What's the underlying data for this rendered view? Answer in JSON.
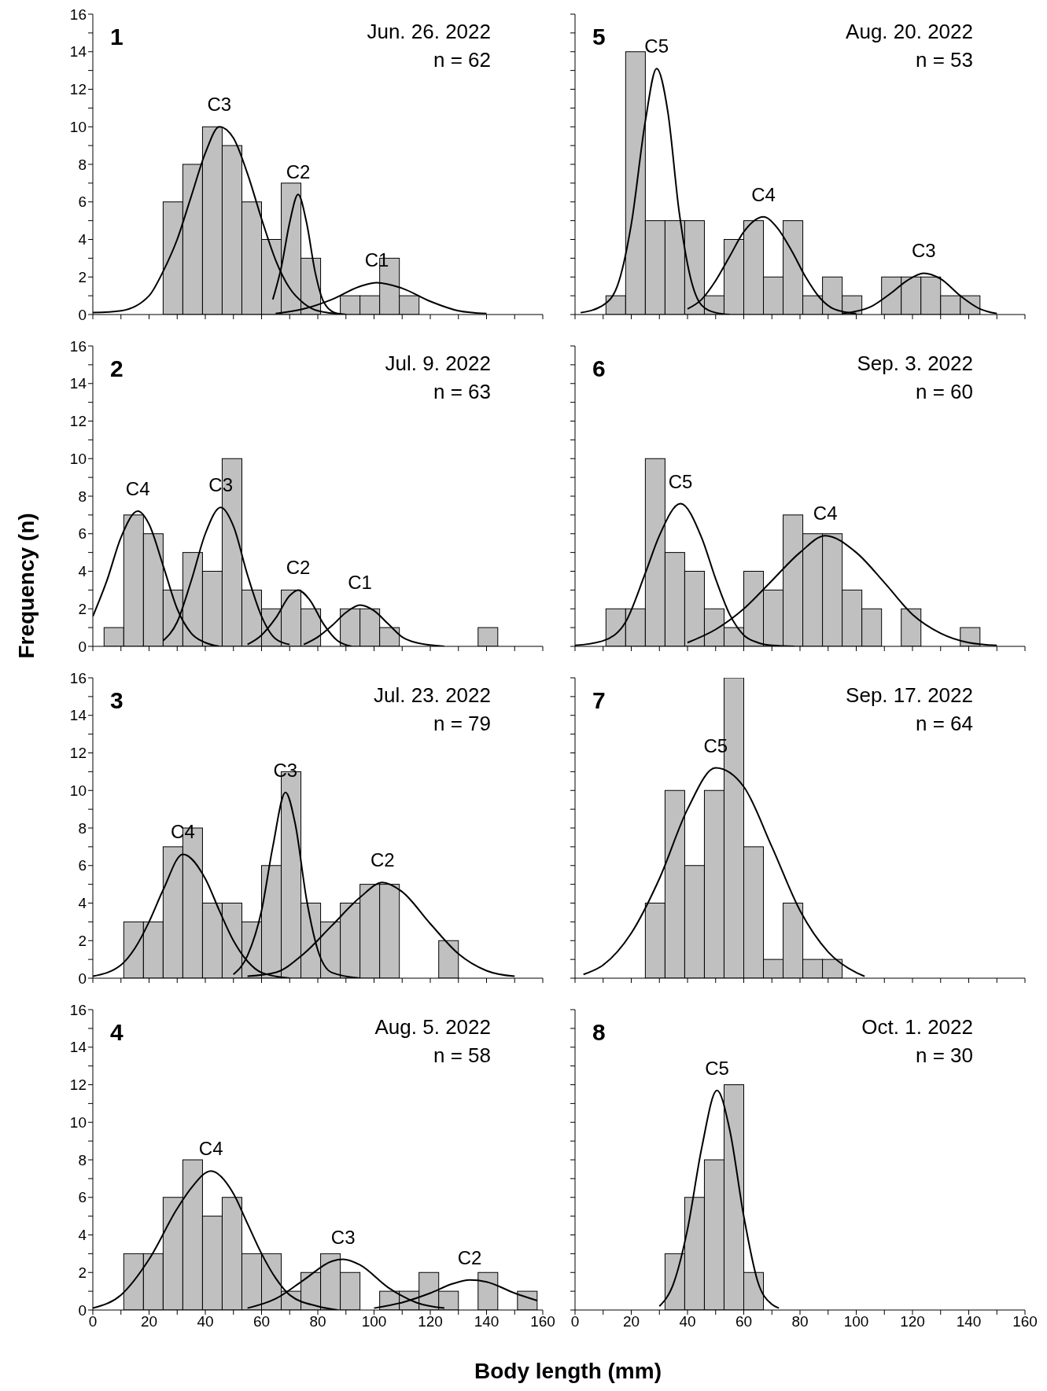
{
  "chart_data": [
    {
      "type": "histogram",
      "bins": [
        25,
        32,
        39,
        46,
        53,
        60,
        67,
        74,
        81,
        88,
        95,
        102,
        109,
        116
      ],
      "values": [
        6,
        8,
        10,
        9,
        6,
        4,
        7,
        3,
        0,
        1,
        1,
        3,
        1
      ],
      "color": "#c0c0c0",
      "xlim": [
        0,
        160
      ],
      "ylim": [
        0,
        16
      ],
      "xticks": [
        0,
        {
          "value": 10,
          "label": null
        },
        20,
        {
          "value": 30,
          "label": null
        },
        40,
        {
          "value": 50,
          "label": null
        },
        60,
        {
          "value": 70,
          "label": null
        },
        80,
        {
          "value": 90,
          "label": null
        },
        100,
        {
          "value": 110,
          "label": null
        },
        120,
        {
          "value": 130,
          "label": null
        },
        140,
        {
          "value": 150,
          "label": null
        },
        160
      ],
      "yticks": [
        0,
        {
          "value": 1,
          "label": null
        },
        2,
        {
          "value": 3,
          "label": null
        },
        4,
        {
          "value": 5,
          "label": null
        },
        6,
        {
          "value": 7,
          "label": null
        },
        8,
        {
          "value": 9,
          "label": null
        },
        10,
        {
          "value": 11,
          "label": null
        },
        12,
        {
          "value": 13,
          "label": null
        },
        14,
        {
          "value": 15,
          "label": null
        },
        16
      ],
      "tick_labels": "y",
      "annotations": [
        "1",
        "Jun. 26. 2022",
        "n = 62"
      ],
      "series": [
        {
          "type": "line",
          "name": "C3",
          "color": "#000000",
          "x": [
            0,
            10,
            20,
            25,
            30,
            35,
            40,
            45,
            50,
            55,
            60,
            65,
            70,
            75,
            80,
            90
          ],
          "values": [
            0.1,
            0.2,
            1.0,
            2.3,
            4.0,
            6.3,
            8.6,
            10,
            9.4,
            7.5,
            5.1,
            2.9,
            1.4,
            0.6,
            0.2,
            0
          ]
        },
        {
          "type": "line",
          "name": "C2",
          "color": "#000000",
          "x": [
            64,
            67,
            70,
            73,
            76,
            79,
            82,
            86,
            90
          ],
          "values": [
            0.8,
            2.5,
            4.9,
            6.4,
            4.9,
            2.3,
            0.7,
            0.1,
            0
          ]
        },
        {
          "type": "line",
          "name": "C1",
          "color": "#000000",
          "x": [
            65,
            75,
            85,
            95,
            101,
            110,
            120,
            130,
            140
          ],
          "values": [
            0.05,
            0.3,
            0.8,
            1.5,
            1.7,
            1.4,
            0.7,
            0.2,
            0.05
          ]
        }
      ]
    },
    {
      "type": "histogram",
      "ylabel": "Frequency (n)",
      "bins": [
        4,
        11,
        18,
        25,
        32,
        39,
        46,
        53,
        60,
        67,
        74,
        81,
        88,
        95,
        102,
        109,
        116,
        123,
        130,
        137,
        144
      ],
      "values": [
        1,
        7,
        6,
        3,
        5,
        4,
        10,
        3,
        2,
        3,
        2,
        0,
        2,
        2,
        1,
        0,
        0,
        0,
        0,
        1
      ],
      "color": "#c0c0c0",
      "xlim": [
        0,
        160
      ],
      "ylim": [
        0,
        16
      ],
      "xticks": [
        0,
        {
          "value": 10,
          "label": null
        },
        20,
        {
          "value": 30,
          "label": null
        },
        40,
        {
          "value": 50,
          "label": null
        },
        60,
        {
          "value": 70,
          "label": null
        },
        80,
        {
          "value": 90,
          "label": null
        },
        100,
        {
          "value": 110,
          "label": null
        },
        120,
        {
          "value": 130,
          "label": null
        },
        140,
        {
          "value": 150,
          "label": null
        },
        160
      ],
      "yticks": [
        0,
        {
          "value": 1,
          "label": null
        },
        2,
        {
          "value": 3,
          "label": null
        },
        4,
        {
          "value": 5,
          "label": null
        },
        6,
        {
          "value": 7,
          "label": null
        },
        8,
        {
          "value": 9,
          "label": null
        },
        10,
        {
          "value": 11,
          "label": null
        },
        12,
        {
          "value": 13,
          "label": null
        },
        14,
        {
          "value": 15,
          "label": null
        },
        16
      ],
      "tick_labels": "y",
      "annotations": [
        "2",
        "Jul. 9. 2022",
        "n = 63"
      ],
      "series": [
        {
          "type": "line",
          "name": "C4",
          "color": "#000000",
          "x": [
            0,
            5,
            10,
            16,
            20,
            25,
            30,
            35,
            40,
            45
          ],
          "values": [
            1.6,
            3.5,
            5.8,
            7.2,
            6.5,
            4.3,
            2.0,
            0.7,
            0.2,
            0
          ]
        },
        {
          "type": "line",
          "name": "C3",
          "color": "#000000",
          "x": [
            25,
            30,
            35,
            40,
            45.5,
            50,
            55,
            60,
            65,
            70
          ],
          "values": [
            0.3,
            1.3,
            3.5,
            6.0,
            7.4,
            6.4,
            3.8,
            1.6,
            0.4,
            0.1
          ]
        },
        {
          "type": "line",
          "name": "C2",
          "color": "#000000",
          "x": [
            55,
            60,
            65,
            70,
            73,
            77,
            82,
            87,
            92
          ],
          "values": [
            0.1,
            0.6,
            1.5,
            2.7,
            3.0,
            2.5,
            1.2,
            0.3,
            0
          ]
        },
        {
          "type": "line",
          "name": "C1",
          "color": "#000000",
          "x": [
            75,
            80,
            85,
            90,
            95,
            100,
            105,
            110,
            115,
            125
          ],
          "values": [
            0.1,
            0.5,
            1.1,
            1.8,
            2.2,
            1.9,
            1.2,
            0.5,
            0.2,
            0
          ]
        }
      ]
    },
    {
      "type": "histogram",
      "bins": [
        11,
        18,
        25,
        32,
        39,
        46,
        53,
        60,
        67,
        74,
        81,
        88,
        95,
        102,
        109,
        116,
        123,
        130
      ],
      "values": [
        3,
        3,
        7,
        8,
        4,
        4,
        3,
        6,
        11,
        4,
        3,
        4,
        5,
        5,
        0,
        0,
        2
      ],
      "color": "#c0c0c0",
      "xlim": [
        0,
        160
      ],
      "ylim": [
        0,
        16
      ],
      "xticks": [
        0,
        {
          "value": 10,
          "label": null
        },
        20,
        {
          "value": 30,
          "label": null
        },
        40,
        {
          "value": 50,
          "label": null
        },
        60,
        {
          "value": 70,
          "label": null
        },
        80,
        {
          "value": 90,
          "label": null
        },
        100,
        {
          "value": 110,
          "label": null
        },
        120,
        {
          "value": 130,
          "label": null
        },
        140,
        {
          "value": 150,
          "label": null
        },
        160
      ],
      "yticks": [
        0,
        {
          "value": 1,
          "label": null
        },
        2,
        {
          "value": 3,
          "label": null
        },
        4,
        {
          "value": 5,
          "label": null
        },
        6,
        {
          "value": 7,
          "label": null
        },
        8,
        {
          "value": 9,
          "label": null
        },
        10,
        {
          "value": 11,
          "label": null
        },
        12,
        {
          "value": 13,
          "label": null
        },
        14,
        {
          "value": 15,
          "label": null
        },
        16
      ],
      "tick_labels": "y",
      "annotations": [
        "3",
        "Jul. 23. 2022",
        "n = 79"
      ],
      "series": [
        {
          "type": "line",
          "name": "C4",
          "color": "#000000",
          "x": [
            0,
            10,
            15,
            20,
            25,
            32,
            40,
            45,
            50,
            55,
            60,
            70
          ],
          "values": [
            0.1,
            0.7,
            1.6,
            3.0,
            4.7,
            6.6,
            5.3,
            3.6,
            2.0,
            0.9,
            0.3,
            0
          ]
        },
        {
          "type": "line",
          "name": "C3",
          "color": "#000000",
          "x": [
            50,
            55,
            60,
            64,
            68.5,
            72,
            76,
            80,
            85,
            95
          ],
          "values": [
            0.2,
            1.2,
            3.6,
            7.0,
            9.9,
            8.2,
            4.2,
            1.5,
            0.3,
            0
          ]
        },
        {
          "type": "line",
          "name": "C2",
          "color": "#000000",
          "x": [
            55,
            65,
            75,
            85,
            95,
            103,
            110,
            120,
            130,
            140,
            150
          ],
          "values": [
            0.1,
            0.3,
            1.3,
            2.8,
            4.3,
            5.1,
            4.6,
            2.9,
            1.3,
            0.4,
            0.1
          ]
        }
      ]
    },
    {
      "type": "histogram",
      "xlabel": "Body length (mm)",
      "bins": [
        11,
        18,
        25,
        32,
        39,
        46,
        53,
        60,
        67,
        74,
        81,
        88,
        95,
        102,
        109,
        116,
        123,
        130,
        137,
        144,
        151,
        158
      ],
      "values": [
        3,
        3,
        6,
        8,
        5,
        6,
        3,
        3,
        1,
        2,
        3,
        2,
        0,
        1,
        1,
        2,
        1,
        0,
        2,
        0,
        1
      ],
      "color": "#c0c0c0",
      "xlim": [
        0,
        160
      ],
      "ylim": [
        0,
        16
      ],
      "xticks": [
        0,
        {
          "value": 10,
          "label": null
        },
        20,
        {
          "value": 30,
          "label": null
        },
        40,
        {
          "value": 50,
          "label": null
        },
        60,
        {
          "value": 70,
          "label": null
        },
        80,
        {
          "value": 90,
          "label": null
        },
        100,
        {
          "value": 110,
          "label": null
        },
        120,
        {
          "value": 130,
          "label": null
        },
        140,
        {
          "value": 150,
          "label": null
        },
        160
      ],
      "yticks": [
        0,
        {
          "value": 1,
          "label": null
        },
        2,
        {
          "value": 3,
          "label": null
        },
        4,
        {
          "value": 5,
          "label": null
        },
        6,
        {
          "value": 7,
          "label": null
        },
        8,
        {
          "value": 9,
          "label": null
        },
        10,
        {
          "value": 11,
          "label": null
        },
        12,
        {
          "value": 13,
          "label": null
        },
        14,
        {
          "value": 15,
          "label": null
        },
        16
      ],
      "annotations": [
        "4",
        "Aug. 5. 2022",
        "n = 58"
      ],
      "series": [
        {
          "type": "line",
          "name": "C4",
          "color": "#000000",
          "x": [
            0,
            10,
            20,
            30,
            35,
            42,
            50,
            55,
            60,
            65,
            70,
            80,
            87
          ],
          "values": [
            0.1,
            0.8,
            2.7,
            5.4,
            6.5,
            7.4,
            6.2,
            4.6,
            3.0,
            1.7,
            0.8,
            0.2,
            0
          ]
        },
        {
          "type": "line",
          "name": "C3",
          "color": "#000000",
          "x": [
            55,
            65,
            75,
            85,
            89,
            95,
            105,
            115,
            125
          ],
          "values": [
            0.1,
            0.6,
            1.6,
            2.6,
            2.7,
            2.4,
            1.2,
            0.4,
            0.1
          ]
        },
        {
          "type": "line",
          "name": "C2",
          "color": "#000000",
          "x": [
            100,
            110,
            120,
            128,
            134,
            140,
            150,
            158
          ],
          "values": [
            0.1,
            0.4,
            0.9,
            1.4,
            1.6,
            1.5,
            0.9,
            0.5
          ]
        }
      ]
    },
    {
      "type": "histogram",
      "bins": [
        11,
        18,
        25,
        32,
        39,
        46,
        53,
        60,
        67,
        74,
        81,
        88,
        95,
        102,
        109,
        116,
        123,
        130,
        137,
        144
      ],
      "values": [
        1,
        14,
        5,
        5,
        5,
        1,
        4,
        5,
        2,
        5,
        1,
        2,
        1,
        0,
        2,
        2,
        2,
        1,
        1
      ],
      "color": "#c0c0c0",
      "xlim": [
        0,
        160
      ],
      "ylim": [
        0,
        16
      ],
      "xticks": [
        0,
        {
          "value": 10,
          "label": null
        },
        20,
        {
          "value": 30,
          "label": null
        },
        40,
        {
          "value": 50,
          "label": null
        },
        60,
        {
          "value": 70,
          "label": null
        },
        80,
        {
          "value": 90,
          "label": null
        },
        100,
        {
          "value": 110,
          "label": null
        },
        120,
        {
          "value": 130,
          "label": null
        },
        140,
        {
          "value": 150,
          "label": null
        },
        160
      ],
      "yticks": [
        0,
        {
          "value": 1,
          "label": null
        },
        2,
        {
          "value": 3,
          "label": null
        },
        4,
        {
          "value": 5,
          "label": null
        },
        6,
        {
          "value": 7,
          "label": null
        },
        8,
        {
          "value": 9,
          "label": null
        },
        10,
        {
          "value": 11,
          "label": null
        },
        12,
        {
          "value": 13,
          "label": null
        },
        14,
        {
          "value": 15,
          "label": null
        },
        16
      ],
      "tick_labels": false,
      "annotations": [
        "5",
        "Aug. 20. 2022",
        "n = 53"
      ],
      "series": [
        {
          "type": "line",
          "name": "C5",
          "color": "#000000",
          "x": [
            2,
            10,
            15,
            20,
            25,
            29,
            33,
            37,
            41,
            45,
            50,
            55
          ],
          "values": [
            0.1,
            0.5,
            1.5,
            4.8,
            10.3,
            13.1,
            10.8,
            5.5,
            2.0,
            0.5,
            0.1,
            0
          ]
        },
        {
          "type": "line",
          "name": "C4",
          "color": "#000000",
          "x": [
            40,
            45,
            50,
            55,
            60,
            67,
            72,
            77,
            82,
            87,
            92,
            100
          ],
          "values": [
            0.3,
            0.8,
            1.8,
            3.1,
            4.4,
            5.2,
            4.6,
            3.4,
            2.0,
            0.9,
            0.3,
            0.05
          ]
        },
        {
          "type": "line",
          "name": "C3",
          "color": "#000000",
          "x": [
            95,
            105,
            112,
            118,
            124,
            130,
            137,
            144,
            150
          ],
          "values": [
            0.05,
            0.4,
            1.1,
            1.8,
            2.2,
            1.9,
            1.0,
            0.3,
            0.05
          ]
        }
      ]
    },
    {
      "type": "histogram",
      "bins": [
        11,
        18,
        25,
        32,
        39,
        46,
        53,
        60,
        67,
        74,
        81,
        88,
        95,
        102,
        109,
        116,
        123,
        130,
        137,
        144
      ],
      "values": [
        2,
        2,
        10,
        5,
        4,
        2,
        1,
        4,
        3,
        7,
        6,
        6,
        3,
        2,
        0,
        2,
        0,
        0,
        1
      ],
      "color": "#c0c0c0",
      "xlim": [
        0,
        160
      ],
      "ylim": [
        0,
        16
      ],
      "xticks": [
        0,
        {
          "value": 10,
          "label": null
        },
        20,
        {
          "value": 30,
          "label": null
        },
        40,
        {
          "value": 50,
          "label": null
        },
        60,
        {
          "value": 70,
          "label": null
        },
        80,
        {
          "value": 90,
          "label": null
        },
        100,
        {
          "value": 110,
          "label": null
        },
        120,
        {
          "value": 130,
          "label": null
        },
        140,
        {
          "value": 150,
          "label": null
        },
        160
      ],
      "yticks": [
        0,
        {
          "value": 1,
          "label": null
        },
        2,
        {
          "value": 3,
          "label": null
        },
        4,
        {
          "value": 5,
          "label": null
        },
        6,
        {
          "value": 7,
          "label": null
        },
        8,
        {
          "value": 9,
          "label": null
        },
        10,
        {
          "value": 11,
          "label": null
        },
        12,
        {
          "value": 13,
          "label": null
        },
        14,
        {
          "value": 15,
          "label": null
        },
        16
      ],
      "tick_labels": false,
      "annotations": [
        "6",
        "Sep. 3. 2022",
        "n = 60"
      ],
      "series": [
        {
          "type": "line",
          "name": "C5",
          "color": "#000000",
          "x": [
            0,
            10,
            18,
            25,
            30,
            37.5,
            45,
            50,
            55,
            60,
            65,
            70,
            78
          ],
          "values": [
            0.05,
            0.3,
            1.3,
            3.9,
            5.9,
            7.6,
            5.8,
            3.6,
            1.7,
            0.6,
            0.2,
            0.05,
            0
          ]
        },
        {
          "type": "line",
          "name": "C4",
          "color": "#000000",
          "x": [
            40,
            50,
            60,
            70,
            80,
            89,
            100,
            110,
            120,
            130,
            140,
            150
          ],
          "values": [
            0.2,
            0.9,
            2.0,
            3.5,
            5.0,
            5.9,
            5.0,
            3.4,
            1.7,
            0.7,
            0.2,
            0.05
          ]
        }
      ]
    },
    {
      "type": "histogram",
      "bins": [
        25,
        32,
        39,
        46,
        53,
        60,
        67,
        74,
        81,
        88,
        95
      ],
      "values": [
        4,
        10,
        6,
        10,
        16,
        7,
        1,
        4,
        1,
        1
      ],
      "color": "#c0c0c0",
      "xlim": [
        0,
        160
      ],
      "ylim": [
        0,
        16
      ],
      "xticks": [
        0,
        {
          "value": 10,
          "label": null
        },
        20,
        {
          "value": 30,
          "label": null
        },
        40,
        {
          "value": 50,
          "label": null
        },
        60,
        {
          "value": 70,
          "label": null
        },
        80,
        {
          "value": 90,
          "label": null
        },
        100,
        {
          "value": 110,
          "label": null
        },
        120,
        {
          "value": 130,
          "label": null
        },
        140,
        {
          "value": 150,
          "label": null
        },
        160
      ],
      "yticks": [
        0,
        {
          "value": 1,
          "label": null
        },
        2,
        {
          "value": 3,
          "label": null
        },
        4,
        {
          "value": 5,
          "label": null
        },
        6,
        {
          "value": 7,
          "label": null
        },
        8,
        {
          "value": 9,
          "label": null
        },
        10,
        {
          "value": 11,
          "label": null
        },
        12,
        {
          "value": 13,
          "label": null
        },
        14,
        {
          "value": 15,
          "label": null
        },
        16
      ],
      "tick_labels": false,
      "annotations": [
        "7",
        "Sep. 17. 2022",
        "n = 64"
      ],
      "series": [
        {
          "type": "line",
          "name": "C5",
          "color": "#000000",
          "x": [
            3,
            10,
            20,
            30,
            40,
            50,
            60,
            70,
            80,
            90,
            100,
            103
          ],
          "values": [
            0.2,
            0.7,
            2.4,
            5.3,
            9.0,
            11.2,
            10.2,
            7.0,
            3.6,
            1.4,
            0.3,
            0.1
          ]
        }
      ]
    },
    {
      "type": "histogram",
      "bins": [
        32,
        39,
        46,
        53,
        60,
        67
      ],
      "values": [
        3,
        6,
        8,
        12,
        2
      ],
      "color": "#c0c0c0",
      "xlim": [
        0,
        160
      ],
      "ylim": [
        0,
        16
      ],
      "xticks": [
        0,
        {
          "value": 10,
          "label": null
        },
        20,
        {
          "value": 30,
          "label": null
        },
        40,
        {
          "value": 50,
          "label": null
        },
        60,
        {
          "value": 70,
          "label": null
        },
        80,
        {
          "value": 90,
          "label": null
        },
        100,
        {
          "value": 110,
          "label": null
        },
        120,
        {
          "value": 130,
          "label": null
        },
        140,
        {
          "value": 150,
          "label": null
        },
        160
      ],
      "yticks": [
        0,
        {
          "value": 1,
          "label": null
        },
        2,
        {
          "value": 3,
          "label": null
        },
        4,
        {
          "value": 5,
          "label": null
        },
        6,
        {
          "value": 7,
          "label": null
        },
        8,
        {
          "value": 9,
          "label": null
        },
        10,
        {
          "value": 11,
          "label": null
        },
        12,
        {
          "value": 13,
          "label": null
        },
        14,
        {
          "value": 15,
          "label": null
        },
        16
      ],
      "tick_labels": "x",
      "annotations": [
        "8",
        "Oct. 1. 2022",
        "n = 30"
      ],
      "series": [
        {
          "type": "line",
          "name": "C5",
          "color": "#000000",
          "x": [
            30,
            35,
            40,
            45,
            50.5,
            55,
            60,
            65,
            70,
            72.5
          ],
          "values": [
            0.2,
            1.4,
            4.3,
            8.6,
            11.7,
            9.6,
            5.0,
            1.5,
            0.3,
            0.1
          ]
        }
      ]
    }
  ]
}
